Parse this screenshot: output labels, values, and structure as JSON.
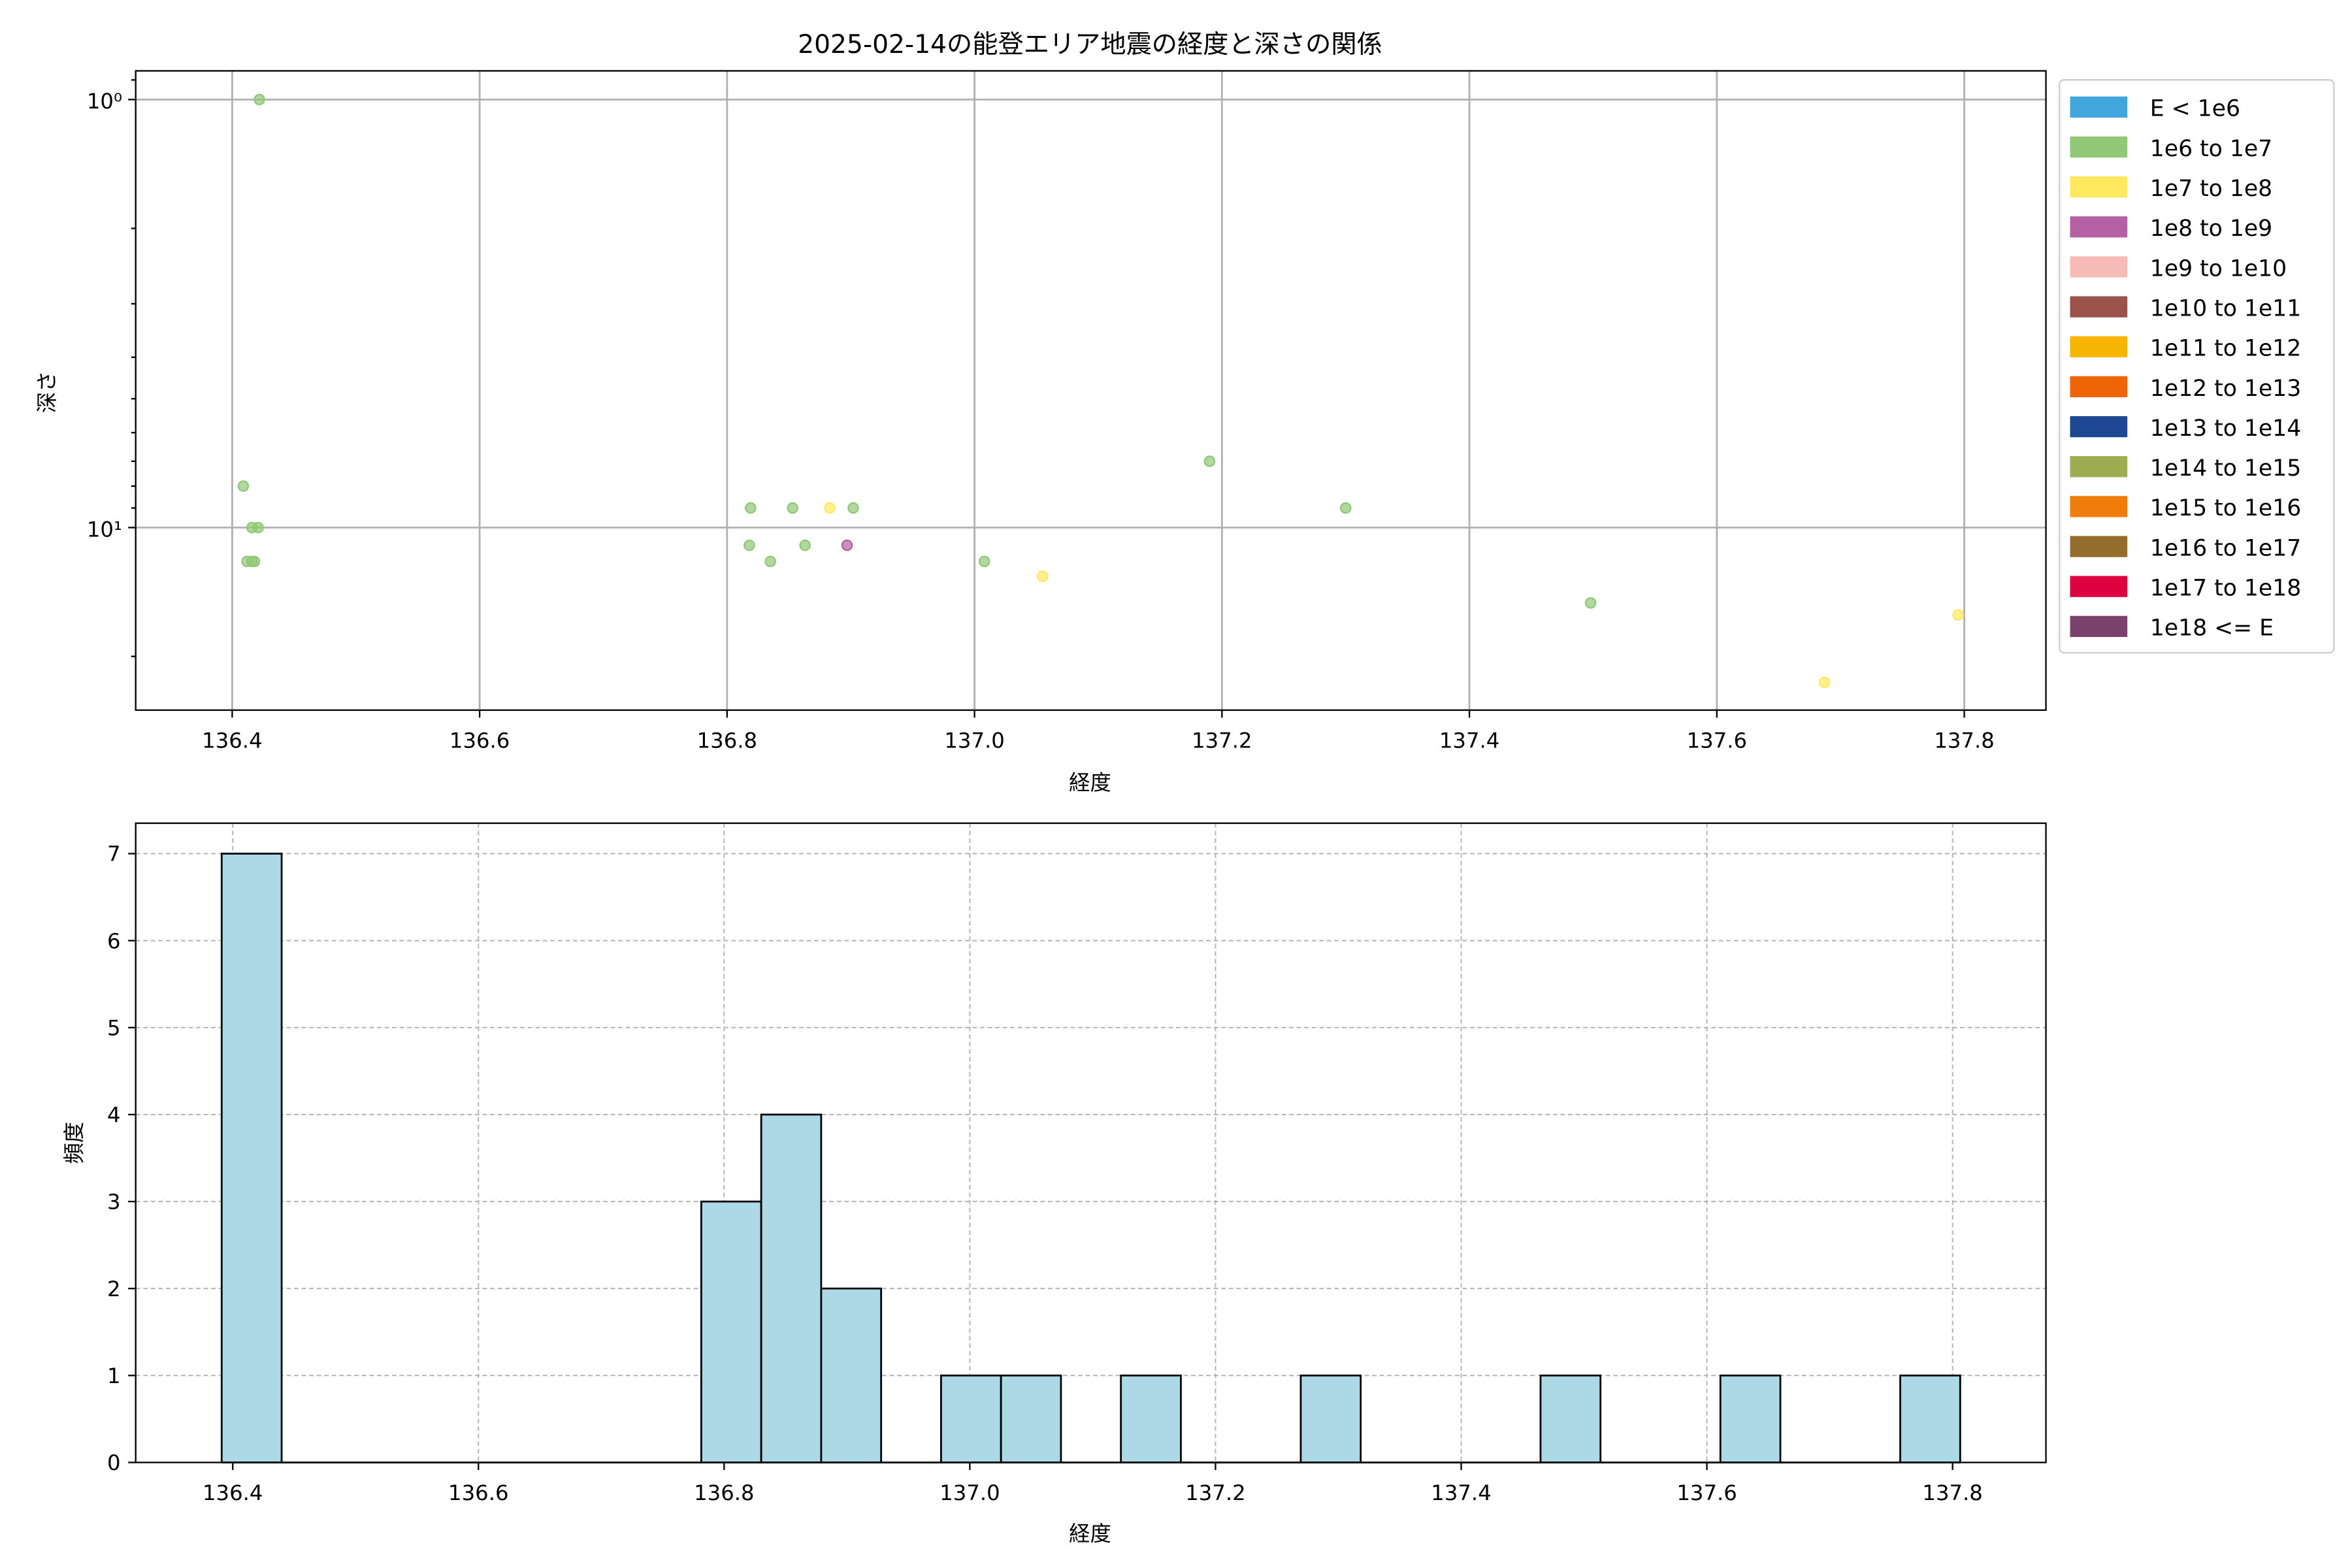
{
  "chart_data": [
    {
      "type": "scatter",
      "title": "2025-02-14の能登エリア地震の経度と深さの関係",
      "xlabel": "経度",
      "ylabel": "深さ",
      "xlim": [
        136.322,
        137.866
      ],
      "ylim": [
        26.7,
        0.857
      ],
      "y_scale": "log",
      "y_inverted": true,
      "grid": true,
      "x_ticks": [
        "136.4",
        "136.6",
        "136.8",
        "137.0",
        "137.2",
        "137.4",
        "137.6",
        "137.8"
      ],
      "y_ticks": [
        {
          "value": 1,
          "label": "10⁰"
        },
        {
          "value": 10,
          "label": "10¹"
        }
      ],
      "legend_position": "outside-right",
      "legend": [
        {
          "label": "E < 1e6",
          "color": "#41a6dc"
        },
        {
          "label": "1e6 to 1e7",
          "color": "#91c878"
        },
        {
          "label": "1e7 to 1e8",
          "color": "#ffe95f"
        },
        {
          "label": "1e8 to 1e9",
          "color": "#b560a5"
        },
        {
          "label": "1e9 to 1e10",
          "color": "#f7bcb8"
        },
        {
          "label": "1e10 to 1e11",
          "color": "#9a5348"
        },
        {
          "label": "1e11 to 1e12",
          "color": "#f7b500"
        },
        {
          "label": "1e12 to 1e13",
          "color": "#ee6508"
        },
        {
          "label": "1e13 to 1e14",
          "color": "#1e4894"
        },
        {
          "label": "1e14 to 1e15",
          "color": "#9ead52"
        },
        {
          "label": "1e15 to 1e16",
          "color": "#f07c0c"
        },
        {
          "label": "1e16 to 1e17",
          "color": "#946d2d"
        },
        {
          "label": "1e17 to 1e18",
          "color": "#dc0340"
        },
        {
          "label": "1e18 <= E",
          "color": "#7b426e"
        }
      ],
      "points": [
        {
          "lon": 136.422,
          "depth": 1,
          "cls": 1
        },
        {
          "lon": 136.409,
          "depth": 8,
          "cls": 1
        },
        {
          "lon": 136.416,
          "depth": 10,
          "cls": 1
        },
        {
          "lon": 136.421,
          "depth": 10,
          "cls": 1
        },
        {
          "lon": 136.412,
          "depth": 12,
          "cls": 1
        },
        {
          "lon": 136.416,
          "depth": 12,
          "cls": 1
        },
        {
          "lon": 136.418,
          "depth": 12,
          "cls": 1
        },
        {
          "lon": 136.819,
          "depth": 9,
          "cls": 1
        },
        {
          "lon": 136.853,
          "depth": 9,
          "cls": 1
        },
        {
          "lon": 136.883,
          "depth": 9,
          "cls": 2
        },
        {
          "lon": 136.902,
          "depth": 9,
          "cls": 1
        },
        {
          "lon": 136.818,
          "depth": 11,
          "cls": 1
        },
        {
          "lon": 136.863,
          "depth": 11,
          "cls": 1
        },
        {
          "lon": 136.897,
          "depth": 11,
          "cls": 3
        },
        {
          "lon": 136.835,
          "depth": 12,
          "cls": 1
        },
        {
          "lon": 137.008,
          "depth": 12,
          "cls": 1
        },
        {
          "lon": 137.055,
          "depth": 13,
          "cls": 2
        },
        {
          "lon": 137.19,
          "depth": 7,
          "cls": 1
        },
        {
          "lon": 137.3,
          "depth": 9,
          "cls": 1
        },
        {
          "lon": 137.498,
          "depth": 15,
          "cls": 1
        },
        {
          "lon": 137.687,
          "depth": 23,
          "cls": 2
        },
        {
          "lon": 137.795,
          "depth": 16,
          "cls": 2
        }
      ]
    },
    {
      "type": "bar",
      "subtype": "histogram",
      "xlabel": "経度",
      "ylabel": "頻度",
      "xlim": [
        136.321,
        137.876
      ],
      "ylim": [
        0,
        7.35
      ],
      "grid": true,
      "grid_style": "dashed",
      "bar_color": "#add8e6",
      "bin_start": 136.391,
      "bin_width": 0.0488,
      "counts": [
        7,
        0,
        0,
        0,
        0,
        0,
        0,
        0,
        3,
        4,
        2,
        0,
        1,
        1,
        0,
        1,
        0,
        0,
        1,
        0,
        0,
        0,
        1,
        0,
        0,
        1,
        0,
        0,
        1
      ],
      "x_ticks": [
        "136.4",
        "136.6",
        "136.8",
        "137.0",
        "137.2",
        "137.4",
        "137.6",
        "137.8"
      ],
      "y_ticks": [
        "0",
        "1",
        "2",
        "3",
        "4",
        "5",
        "6",
        "7"
      ]
    }
  ]
}
